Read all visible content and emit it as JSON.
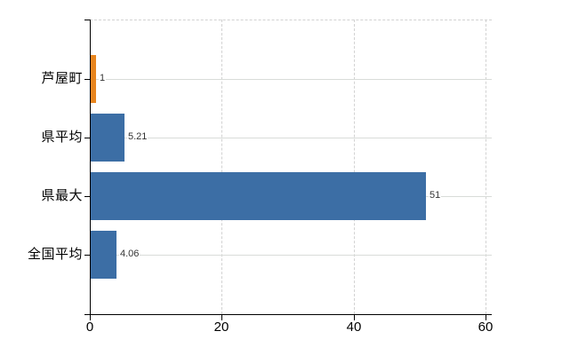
{
  "chart_data": {
    "type": "bar",
    "orientation": "horizontal",
    "title": "",
    "xlabel": "",
    "ylabel": "",
    "categories": [
      "芦屋町",
      "県平均",
      "県最大",
      "全国平均"
    ],
    "values": [
      1,
      5.21,
      51,
      4.06
    ],
    "value_labels": [
      "1",
      "5.21",
      "51",
      "4.06"
    ],
    "bar_colors": [
      "#e8851e",
      "#3c6ea5",
      "#3c6ea5",
      "#3c6ea5"
    ],
    "xlim": [
      0,
      60
    ],
    "xticks": [
      0,
      20,
      40,
      60
    ],
    "xtick_labels": [
      "0",
      "20",
      "40",
      "60"
    ],
    "grid": "on",
    "legend": "none",
    "colors": {
      "highlight_orange": "#e8851e",
      "series_blue": "#3c6ea5",
      "gridline": "#d9d9d9",
      "axis": "#000000",
      "background": "#ffffff",
      "value_text": "#333333",
      "label_text": "#000000"
    }
  }
}
